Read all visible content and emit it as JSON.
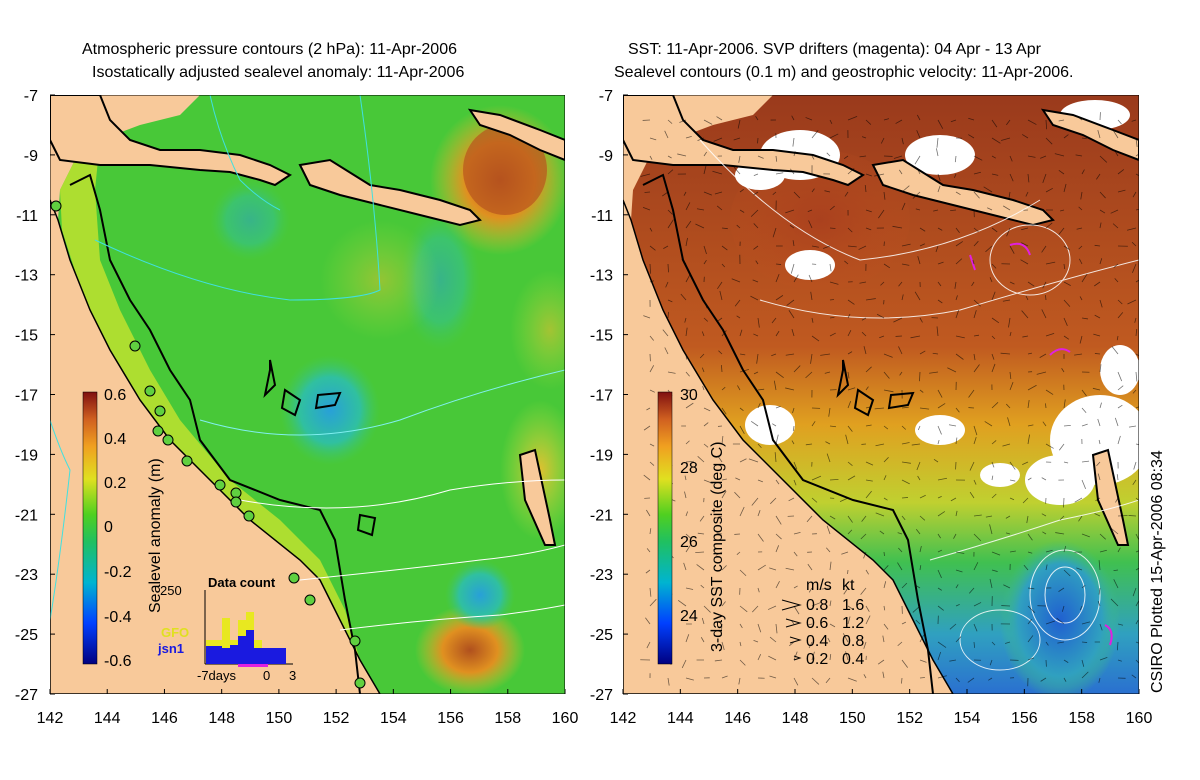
{
  "left_panel": {
    "title_line1": "Atmospheric pressure contours (2 hPa): 11-Apr-2006",
    "title_line2": "Isostatically adjusted sealevel anomaly: 11-Apr-2006",
    "colorbar_label": "Sealevel anomaly (m)",
    "colorbar_ticks": [
      "0.6",
      "0.4",
      "0.2",
      "0",
      "-0.2",
      "-0.4",
      "-0.6"
    ],
    "inset": {
      "title": "Data count",
      "ymax_label": "250",
      "legend": [
        "GFO",
        "jsn1"
      ],
      "x_labels": [
        "-7days",
        "0",
        "3"
      ]
    }
  },
  "right_panel": {
    "title_line1": "SST: 11-Apr-2006. SVP drifters (magenta): 04 Apr - 13 Apr",
    "title_line2": "Sealevel contours (0.1 m) and geostrophic velocity: 11-Apr-2006.",
    "colorbar_label": "3-day SST composite (deg C)",
    "colorbar_ticks": [
      "30",
      "28",
      "26",
      "24"
    ],
    "velocity_legend": {
      "header_ms": "m/s",
      "header_kt": "kt",
      "rows": [
        {
          "ms": "0.8",
          "kt": "1.6"
        },
        {
          "ms": "0.6",
          "kt": "1.2"
        },
        {
          "ms": "0.4",
          "kt": "0.8"
        },
        {
          "ms": "0.2",
          "kt": "0.4"
        }
      ]
    },
    "credit": "CSIRO Plotted 15-Apr-2006 08:34"
  },
  "axes": {
    "x_ticks": [
      "142",
      "144",
      "146",
      "148",
      "150",
      "152",
      "154",
      "156",
      "158",
      "160"
    ],
    "y_ticks": [
      "-7",
      "-9",
      "-11",
      "-13",
      "-15",
      "-17",
      "-19",
      "-21",
      "-23",
      "-25",
      "-27"
    ]
  },
  "colors": {
    "land": "#f8c99a",
    "sea_green": "#3cc83c",
    "sea_yellow": "#c8e63c",
    "anomaly_high": "#b45a1e",
    "anomaly_low": "#2896c8",
    "sst_hot": "#a03a1e",
    "sst_cool": "#2a7ad0",
    "drifter": "#e020e0"
  }
}
